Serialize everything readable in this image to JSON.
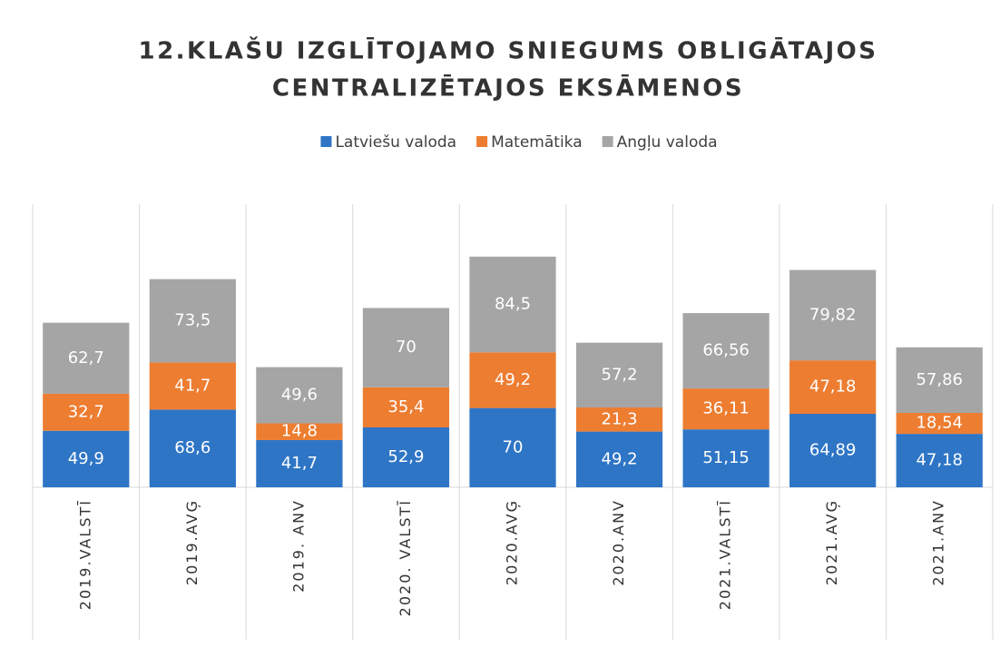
{
  "chart_data": {
    "type": "stacked_bar",
    "title": [
      "12.KLAŠU IZGLĪTOJAMO SNIEGUMS OBLIGĀTAJOS",
      "CENTRALIZĒTAJOS EKSĀMENOS"
    ],
    "categories": [
      "2019.VALSTĪ",
      "2019.AVĢ",
      "2019. ANV",
      "2020. VALSTĪ",
      "2020.AVĢ",
      "2020.ANV",
      "2021.VALSTĪ",
      "2021.AVĢ",
      "2021.ANV"
    ],
    "series": [
      {
        "name": "Latviešu valoda",
        "color": "#2e75c6",
        "values": [
          49.9,
          68.6,
          41.7,
          52.9,
          70,
          49.2,
          51.15,
          64.89,
          47.18
        ],
        "value_labels": [
          "49,9",
          "68,6",
          "41,7",
          "52,9",
          "70",
          "49,2",
          "51,15",
          "64,89",
          "47,18"
        ]
      },
      {
        "name": "Matemātika",
        "color": "#ed7d31",
        "values": [
          32.7,
          41.7,
          14.8,
          35.4,
          49.2,
          21.3,
          36.11,
          47.18,
          18.54
        ],
        "value_labels": [
          "32,7",
          "41,7",
          "14,8",
          "35,4",
          "49,2",
          "21,3",
          "36,11",
          "47,18",
          "18,54"
        ]
      },
      {
        "name": "Angļu valoda",
        "color": "#a5a5a5",
        "values": [
          62.7,
          73.5,
          49.6,
          70,
          84.5,
          57.2,
          66.56,
          79.82,
          57.86
        ],
        "value_labels": [
          "62,7",
          "73,5",
          "49,6",
          "70",
          "84,5",
          "57,2",
          "66,56",
          "79,82",
          "57,86"
        ]
      }
    ],
    "ylim": [
      0,
      250
    ],
    "legend": "top"
  }
}
